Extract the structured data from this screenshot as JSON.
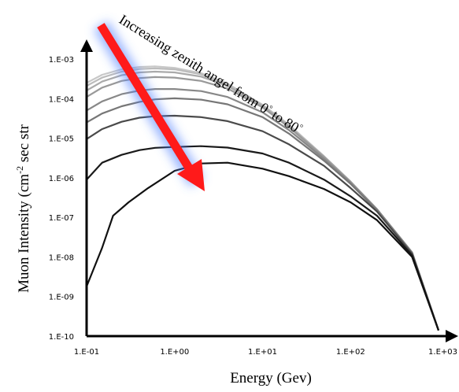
{
  "chart_data": {
    "type": "line",
    "xlabel": "Energy (Gev)",
    "ylabel_main": "Muon Intensity (cm",
    "ylabel_sup": "-2",
    "ylabel_rest": " sec str",
    "xscale": "log",
    "yscale": "log",
    "xlim": [
      0.1,
      1000
    ],
    "ylim": [
      1e-10,
      0.001
    ],
    "grid": false,
    "xticks": [
      {
        "value": 0.1,
        "label": "1.E-01"
      },
      {
        "value": 1,
        "label": "1.E+00"
      },
      {
        "value": 10,
        "label": "1.E+01"
      },
      {
        "value": 100,
        "label": "1.E+02"
      },
      {
        "value": 1000,
        "label": "1.E+03"
      }
    ],
    "yticks": [
      {
        "value": 0.001,
        "label": "1.E-03"
      },
      {
        "value": 0.0001,
        "label": "1.E-04"
      },
      {
        "value": 1e-05,
        "label": "1.E-05"
      },
      {
        "value": 1e-06,
        "label": "1.E-06"
      },
      {
        "value": 1e-07,
        "label": "1.E-07"
      },
      {
        "value": 1e-08,
        "label": "1.E-08"
      },
      {
        "value": 1e-09,
        "label": "1.E-09"
      },
      {
        "value": 1e-10,
        "label": "1.E-10"
      }
    ],
    "annotation": {
      "text_main": "Increasing zenith angel from 0",
      "sup1": "°",
      "text_mid": " to 80",
      "sup2": "°",
      "arrow_color": "#ff1a1a"
    },
    "series": [
      {
        "color": "#c8c8c8",
        "points": [
          [
            0.1,
            0.00025
          ],
          [
            0.15,
            0.0004
          ],
          [
            0.25,
            0.00055
          ],
          [
            0.4,
            0.00063
          ],
          [
            0.6,
            0.00065
          ],
          [
            1,
            0.0006
          ],
          [
            2,
            0.00044
          ],
          [
            4,
            0.00024
          ],
          [
            10,
            7e-05
          ],
          [
            20,
            2.2e-05
          ],
          [
            50,
            3.5e-06
          ],
          [
            100,
            8e-07
          ],
          [
            200,
            1.6e-07
          ],
          [
            500,
            1.3e-08
          ],
          [
            1000,
            1.4e-10
          ]
        ]
      },
      {
        "color": "#bcbcbc",
        "points": [
          [
            0.1,
            0.00021
          ],
          [
            0.15,
            0.00034
          ],
          [
            0.25,
            0.00048
          ],
          [
            0.4,
            0.00056
          ],
          [
            0.6,
            0.00058
          ],
          [
            1,
            0.00055
          ],
          [
            2,
            0.00041
          ],
          [
            4,
            0.00023
          ],
          [
            10,
            6.8e-05
          ],
          [
            20,
            2.1e-05
          ],
          [
            50,
            3.5e-06
          ],
          [
            100,
            8e-07
          ],
          [
            200,
            1.6e-07
          ],
          [
            500,
            1.3e-08
          ],
          [
            1000,
            1.4e-10
          ]
        ]
      },
      {
        "color": "#aaaaaa",
        "points": [
          [
            0.1,
            0.00016
          ],
          [
            0.15,
            0.00027
          ],
          [
            0.25,
            0.00039
          ],
          [
            0.4,
            0.00046
          ],
          [
            0.6,
            0.00048
          ],
          [
            1,
            0.00046
          ],
          [
            2,
            0.00036
          ],
          [
            4,
            0.00021
          ],
          [
            10,
            6.5e-05
          ],
          [
            20,
            2e-05
          ],
          [
            50,
            3.4e-06
          ],
          [
            100,
            8e-07
          ],
          [
            200,
            1.6e-07
          ],
          [
            500,
            1.3e-08
          ],
          [
            1000,
            1.4e-10
          ]
        ]
      },
      {
        "color": "#999999",
        "points": [
          [
            0.1,
            0.00011
          ],
          [
            0.15,
            0.00019
          ],
          [
            0.25,
            0.00028
          ],
          [
            0.4,
            0.00033
          ],
          [
            0.6,
            0.00035
          ],
          [
            1,
            0.00034
          ],
          [
            2,
            0.00028
          ],
          [
            4,
            0.00018
          ],
          [
            10,
            6e-05
          ],
          [
            20,
            1.9e-05
          ],
          [
            50,
            3.3e-06
          ],
          [
            100,
            7.8e-07
          ],
          [
            200,
            1.6e-07
          ],
          [
            500,
            1.3e-08
          ],
          [
            1000,
            1.4e-10
          ]
        ]
      },
      {
        "color": "#888888",
        "points": [
          [
            0.1,
            5e-05
          ],
          [
            0.15,
            8.5e-05
          ],
          [
            0.25,
            0.00013
          ],
          [
            0.4,
            0.00016
          ],
          [
            0.6,
            0.000175
          ],
          [
            1,
            0.000175
          ],
          [
            2,
            0.000155
          ],
          [
            4,
            0.00011
          ],
          [
            10,
            4.5e-05
          ],
          [
            20,
            1.6e-05
          ],
          [
            50,
            3e-06
          ],
          [
            100,
            7.5e-07
          ],
          [
            200,
            1.6e-07
          ],
          [
            500,
            1.3e-08
          ],
          [
            1000,
            1.4e-10
          ]
        ]
      },
      {
        "color": "#777777",
        "points": [
          [
            0.1,
            2.5e-05
          ],
          [
            0.15,
            4.2e-05
          ],
          [
            0.25,
            6.4e-05
          ],
          [
            0.4,
            8.3e-05
          ],
          [
            0.6,
            9.6e-05
          ],
          [
            1,
            0.000102
          ],
          [
            2,
            9.4e-05
          ],
          [
            4,
            7.2e-05
          ],
          [
            10,
            3.4e-05
          ],
          [
            20,
            1.3e-05
          ],
          [
            50,
            2.7e-06
          ],
          [
            100,
            7e-07
          ],
          [
            200,
            1.5e-07
          ],
          [
            500,
            1.25e-08
          ],
          [
            1000,
            1.4e-10
          ]
        ]
      },
      {
        "color": "#4a4a4a",
        "points": [
          [
            0.1,
            9.5e-06
          ],
          [
            0.15,
            1.7e-05
          ],
          [
            0.25,
            2.6e-05
          ],
          [
            0.4,
            3.3e-05
          ],
          [
            0.6,
            3.6e-05
          ],
          [
            1,
            3.7e-05
          ],
          [
            2,
            3.4e-05
          ],
          [
            4,
            2.7e-05
          ],
          [
            10,
            1.5e-05
          ],
          [
            20,
            7e-06
          ],
          [
            50,
            2e-06
          ],
          [
            100,
            5.5e-07
          ],
          [
            200,
            1.4e-07
          ],
          [
            500,
            1.2e-08
          ],
          [
            1000,
            1.4e-10
          ]
        ]
      },
      {
        "color": "#1a1a1a",
        "points": [
          [
            0.1,
            9e-07
          ],
          [
            0.15,
            2.4e-06
          ],
          [
            0.25,
            3.8e-06
          ],
          [
            0.4,
            5e-06
          ],
          [
            0.6,
            5.7e-06
          ],
          [
            1,
            6e-06
          ],
          [
            2,
            6.3e-06
          ],
          [
            4,
            5.8e-06
          ],
          [
            10,
            4.1e-06
          ],
          [
            20,
            2.4e-06
          ],
          [
            50,
            9e-07
          ],
          [
            100,
            3.4e-07
          ],
          [
            200,
            1.1e-07
          ],
          [
            500,
            1.1e-08
          ],
          [
            1000,
            1.4e-10
          ]
        ]
      },
      {
        "color": "#111111",
        "points": [
          [
            0.1,
            1.8e-09
          ],
          [
            0.15,
            1.7e-08
          ],
          [
            0.2,
            1.1e-07
          ],
          [
            0.3,
            2.4e-07
          ],
          [
            0.5,
            5.5e-07
          ],
          [
            1,
            1.5e-06
          ],
          [
            2,
            2.3e-06
          ],
          [
            4,
            2.4e-06
          ],
          [
            10,
            1.7e-06
          ],
          [
            20,
            1.1e-06
          ],
          [
            50,
            5.2e-07
          ],
          [
            100,
            2.4e-07
          ],
          [
            200,
            8.5e-08
          ],
          [
            500,
            1e-08
          ],
          [
            1000,
            1.4e-10
          ]
        ]
      }
    ]
  }
}
